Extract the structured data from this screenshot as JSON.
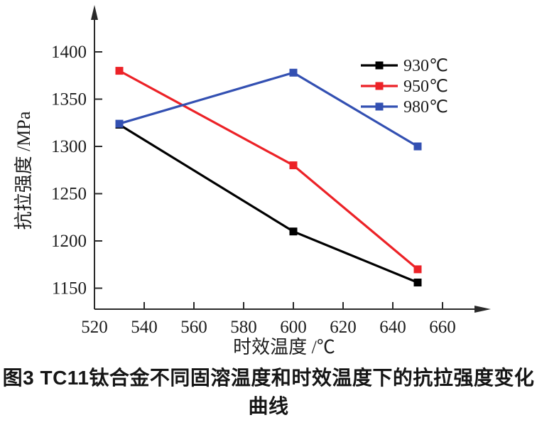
{
  "figure": {
    "caption_line1": "图3  TC11钛合金不同固溶温度和时效温度下的抗拉强度变化",
    "caption_line2": "曲线"
  },
  "chart_data": {
    "type": "line",
    "title": "",
    "xlabel": "时效温度 /℃",
    "ylabel": "抗拉强度 /MPa",
    "xlim": [
      520,
      678
    ],
    "ylim": [
      1128,
      1448
    ],
    "x_ticks": [
      520,
      540,
      560,
      580,
      600,
      620,
      640,
      660
    ],
    "y_ticks": [
      1150,
      1200,
      1250,
      1300,
      1350,
      1400
    ],
    "grid": false,
    "legend_position": "top-right",
    "axis_color": "#2a2a2a",
    "marker": "square",
    "series": [
      {
        "name": "930℃",
        "color": "#000000",
        "x": [
          530,
          600,
          650
        ],
        "y": [
          1323,
          1210,
          1156
        ]
      },
      {
        "name": "950℃",
        "color": "#ec2227",
        "x": [
          530,
          600,
          650
        ],
        "y": [
          1380,
          1280,
          1170
        ]
      },
      {
        "name": "980℃",
        "color": "#3350b2",
        "x": [
          530,
          600,
          650
        ],
        "y": [
          1324,
          1378,
          1300
        ]
      }
    ]
  }
}
